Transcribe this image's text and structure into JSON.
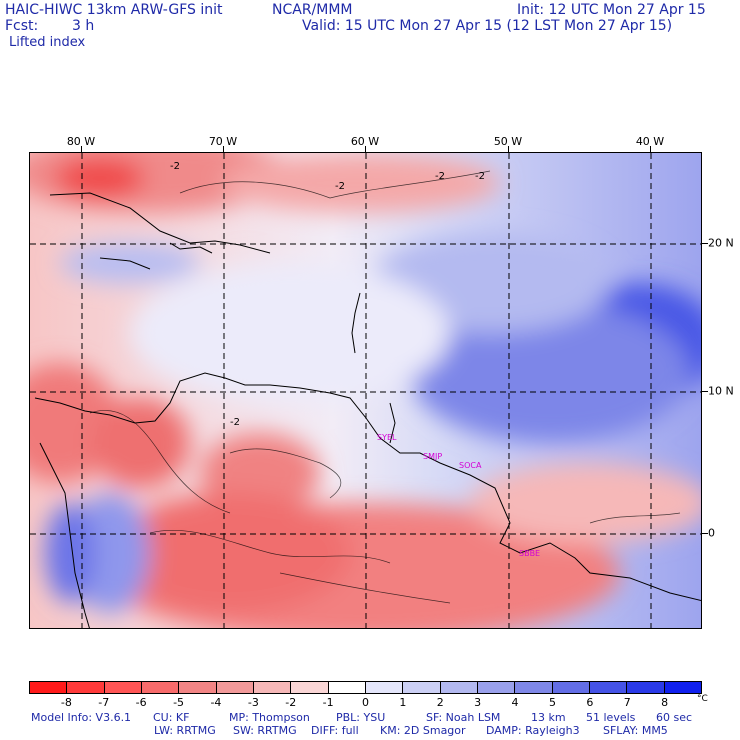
{
  "header": {
    "title": "HAIC-HIWC 13km ARW-GFS init",
    "org": "NCAR/MMM",
    "init": "Init: 12 UTC Mon 27 Apr 15",
    "fcst_label": "Fcst:",
    "fcst_value": "3 h",
    "valid": "Valid: 15 UTC Mon 27 Apr 15 (12 LST Mon 27 Apr 15)",
    "field": "Lifted index"
  },
  "map": {
    "lon_labels": [
      "80 W",
      "70 W",
      "60 W",
      "50 W",
      "40 W"
    ],
    "lat_labels": [
      "20 N",
      "10 N",
      "0"
    ],
    "contour_label": "-2",
    "stations": [
      "SYEL",
      "SMJP",
      "SOCA",
      "SBBE"
    ]
  },
  "colorbar": {
    "labels": [
      "-8",
      "-7",
      "-6",
      "-5",
      "-4",
      "-3",
      "-2",
      "-1",
      "0",
      "1",
      "2",
      "3",
      "4",
      "5",
      "6",
      "7",
      "8"
    ],
    "unit": "°C",
    "colors": [
      "#ff1a1a",
      "#ff3a3a",
      "#ff5555",
      "#f76b6b",
      "#f28585",
      "#f29a9a",
      "#f6b8b8",
      "#fad6d6",
      "#ffffff",
      "#e4e6fb",
      "#ccd0f5",
      "#b3b9f0",
      "#9aa1ec",
      "#7f88e8",
      "#636ee6",
      "#4553e6",
      "#2a3ae8",
      "#1020ee"
    ]
  },
  "footer": {
    "line1": [
      "Model Info: V3.6.1",
      "CU: KF",
      "MP: Thompson",
      "PBL: YSU",
      "SF: Noah LSM",
      "13 km",
      "51 levels",
      "60 sec"
    ],
    "line2": [
      "LW: RRTMG",
      "SW: RRTMG",
      "DIFF: full",
      "KM: 2D Smagor",
      "DAMP: Rayleigh3",
      "SFLAY: MM5"
    ]
  }
}
